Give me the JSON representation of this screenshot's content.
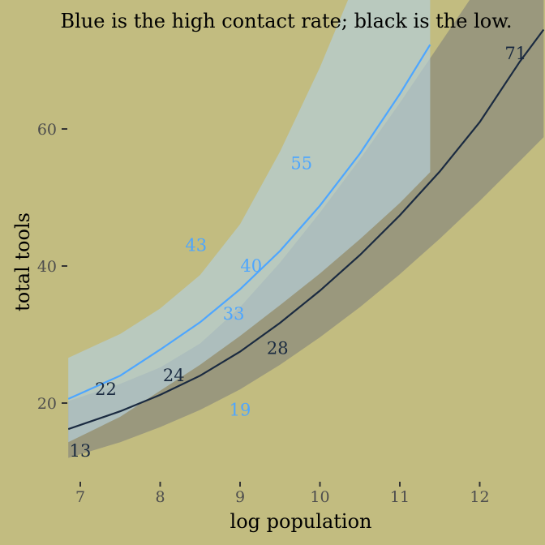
{
  "chart_data": {
    "type": "line",
    "title": "Blue is the high contact rate; black is the low.",
    "xlabel": "log population",
    "ylabel": "total tools",
    "xlim": [
      6.85,
      12.8
    ],
    "ylim": [
      8.5,
      75
    ],
    "x_ticks": [
      7,
      8,
      9,
      10,
      11,
      12
    ],
    "y_ticks": [
      20,
      40,
      60
    ],
    "x_tick_labels": [
      "7",
      "8",
      "9",
      "10",
      "11",
      "12"
    ],
    "y_tick_labels": [
      "20",
      "40",
      "60"
    ],
    "grid": false,
    "legend": "none",
    "series": [
      {
        "contact": "high",
        "color": "#4da6ff",
        "band_color": "#b5cfd9",
        "x": [
          6.85,
          7.5,
          8.0,
          8.5,
          9.0,
          9.5,
          10.0,
          10.5,
          11.0,
          11.38
        ],
        "mean": [
          20.6,
          24.0,
          27.8,
          31.8,
          36.6,
          42.2,
          48.8,
          56.4,
          65.1,
          72.3
        ],
        "lower": [
          14.3,
          18.0,
          21.8,
          25.6,
          29.8,
          34.3,
          38.9,
          43.9,
          49.2,
          53.7
        ],
        "upper": [
          26.6,
          30.1,
          33.8,
          38.7,
          46.1,
          56.7,
          69.0,
          83.0,
          98.0,
          110.0
        ]
      },
      {
        "contact": "low",
        "color": "#1a2a40",
        "band_color": "#7a7a7a",
        "x": [
          6.85,
          7.5,
          8.0,
          8.5,
          9.0,
          9.5,
          10.0,
          10.5,
          11.0,
          11.5,
          12.0,
          12.5,
          12.8
        ],
        "mean": [
          16.2,
          18.8,
          21.2,
          24.0,
          27.5,
          31.7,
          36.4,
          41.6,
          47.4,
          53.8,
          61.0,
          69.8,
          74.5
        ],
        "lower": [
          12.0,
          14.3,
          16.5,
          19.0,
          22.0,
          25.6,
          29.6,
          34.0,
          38.8,
          44.0,
          49.5,
          55.3,
          58.8
        ],
        "upper": [
          20.3,
          22.8,
          25.2,
          28.7,
          34.0,
          40.5,
          47.8,
          55.6,
          63.8,
          72.4,
          81.0,
          90.0,
          95.0
        ]
      }
    ],
    "points": [
      {
        "label": "13",
        "x": 7.0,
        "y": 13,
        "contact": "low"
      },
      {
        "label": "22",
        "x": 7.32,
        "y": 22,
        "contact": "low"
      },
      {
        "label": "24",
        "x": 8.17,
        "y": 24,
        "contact": "low"
      },
      {
        "label": "43",
        "x": 8.45,
        "y": 43,
        "contact": "high"
      },
      {
        "label": "33",
        "x": 8.92,
        "y": 33,
        "contact": "high"
      },
      {
        "label": "19",
        "x": 9.0,
        "y": 19,
        "contact": "high"
      },
      {
        "label": "40",
        "x": 9.14,
        "y": 40,
        "contact": "high"
      },
      {
        "label": "28",
        "x": 9.47,
        "y": 28,
        "contact": "low"
      },
      {
        "label": "55",
        "x": 9.77,
        "y": 55,
        "contact": "high"
      },
      {
        "label": "71",
        "x": 12.45,
        "y": 71,
        "contact": "low"
      }
    ],
    "colors": {
      "background": "#c2bc80",
      "tick_text": "#4d4d4d",
      "tick_mark": "#333333"
    }
  }
}
